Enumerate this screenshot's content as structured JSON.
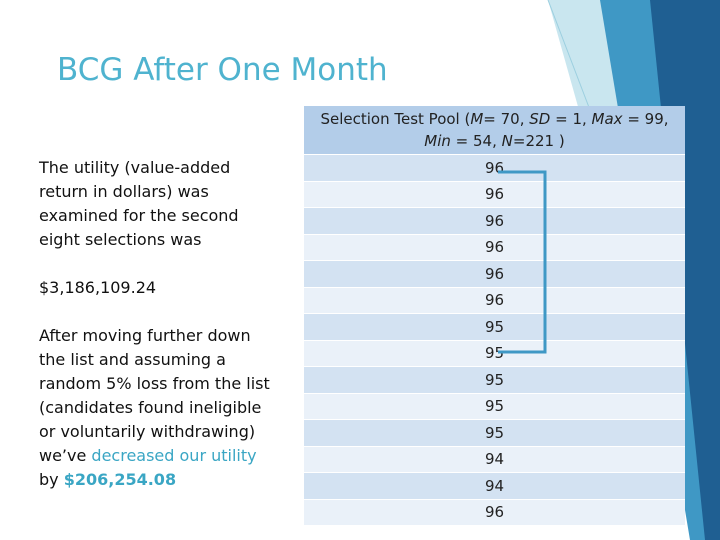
{
  "slide": {
    "title": "BCG After One Month",
    "body": {
      "paragraph1": "The utility (value-added return in dollars) was examined for the second eight selections was",
      "amount": "$3,186,109.24",
      "paragraph3": [
        {
          "text": "After moving further down the list and assuming a random 5% loss from the list (candidates found ineligible or voluntarily withdrawing) we’ve ",
          "style": "plain"
        },
        {
          "text": "decreased our utility",
          "style": "highlight"
        },
        {
          "text": " by ",
          "style": "plain"
        },
        {
          "text": "$206,254.08",
          "style": "bold-highlight"
        }
      ]
    },
    "table": {
      "header": [
        {
          "text": "Selection Test Pool (",
          "italic": false
        },
        {
          "text": "M",
          "italic": true
        },
        {
          "text": "= 70, ",
          "italic": false
        },
        {
          "text": "SD",
          "italic": true
        },
        {
          "text": " = 1, ",
          "italic": false
        },
        {
          "text": "Max",
          "italic": true
        },
        {
          "text": " = 99, ",
          "italic": false
        },
        {
          "text": "Min",
          "italic": true
        },
        {
          "text": " = 54, ",
          "italic": false
        },
        {
          "text": "N",
          "italic": true
        },
        {
          "text": "=221 )",
          "italic": false
        }
      ],
      "rows": [
        96,
        96,
        96,
        96,
        96,
        96,
        95,
        95,
        95,
        95,
        95,
        94,
        94,
        96
      ]
    }
  }
}
